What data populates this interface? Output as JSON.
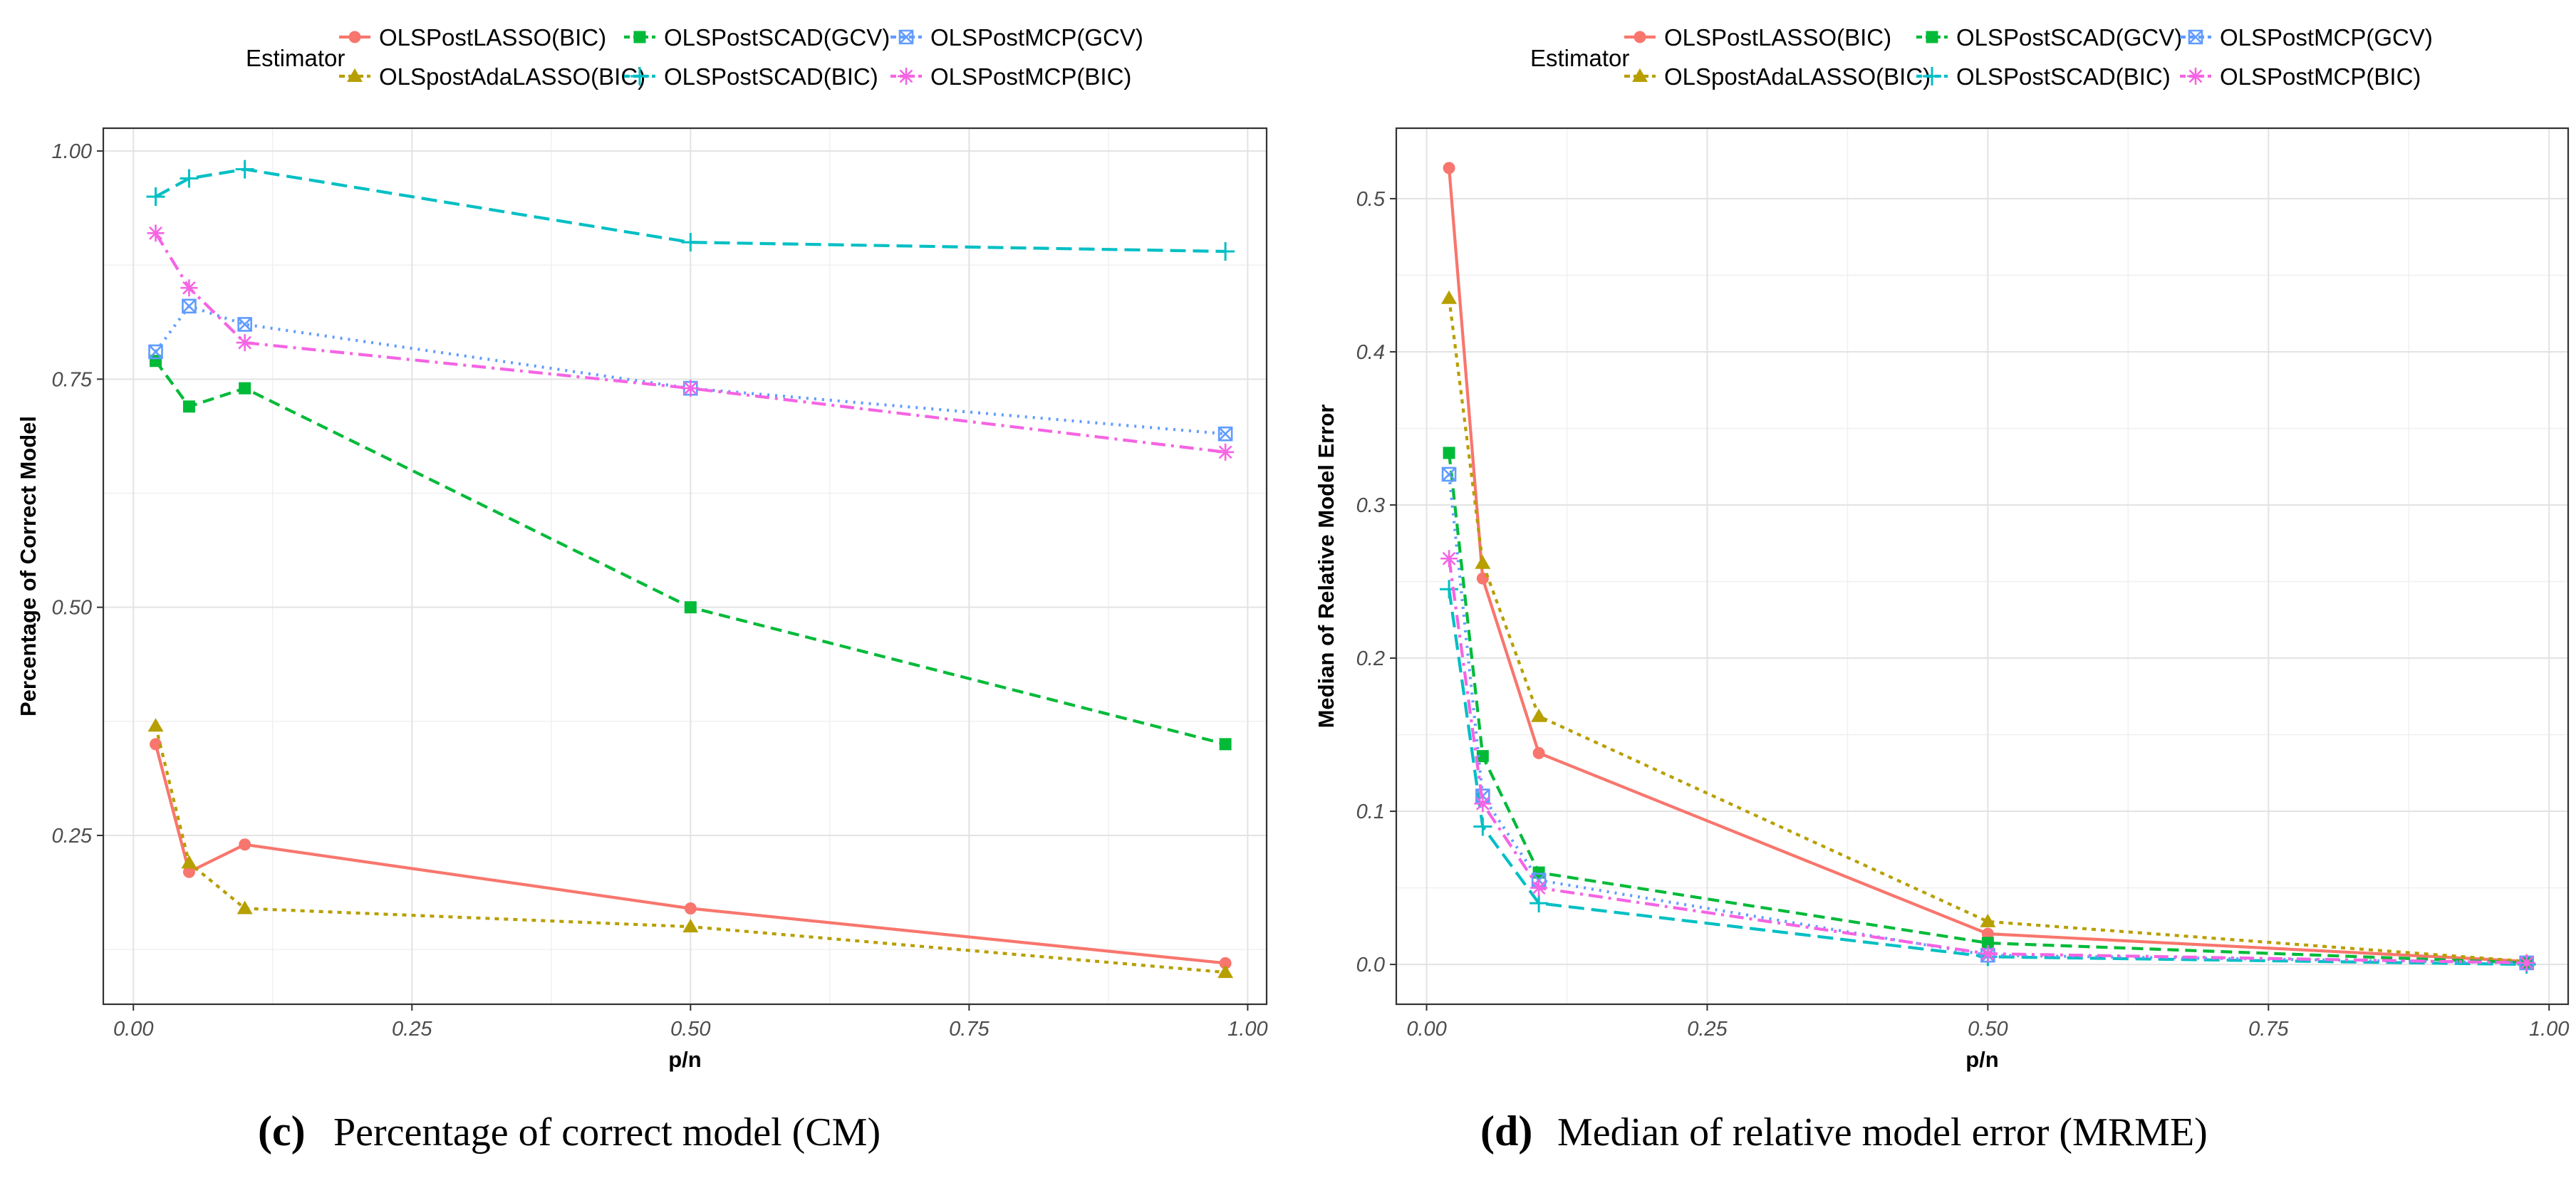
{
  "legend": {
    "title": "Estimator",
    "entries": [
      {
        "name": "OLSPostLASSO(BIC)",
        "color": "#f8766d"
      },
      {
        "name": "OLSpostAdaLASSO(BIC)",
        "color": "#b79f00"
      },
      {
        "name": "OLSPostSCAD(GCV)",
        "color": "#00ba38"
      },
      {
        "name": "OLSPostSCAD(BIC)",
        "color": "#00bfc4"
      },
      {
        "name": "OLSPostMCP(GCV)",
        "color": "#619cff"
      },
      {
        "name": "OLSPostMCP(BIC)",
        "color": "#f564e3"
      }
    ]
  },
  "chart_data": [
    {
      "type": "line",
      "id": "c",
      "caption_letter": "(c)",
      "caption_text": "Percentage of correct model (CM)",
      "xlabel": "p/n",
      "ylabel": "Percentage of Correct Model",
      "xlim": [
        -0.027,
        1.017
      ],
      "ylim": [
        0.065,
        1.025
      ],
      "xticks": [
        0.0,
        0.25,
        0.5,
        0.75,
        1.0
      ],
      "xtick_labels": [
        "0.00",
        "0.25",
        "0.50",
        "0.75",
        "1.00"
      ],
      "yticks": [
        0.25,
        0.5,
        0.75,
        1.0
      ],
      "ytick_labels": [
        "0.25",
        "0.50",
        "0.75",
        "1.00"
      ],
      "x": [
        0.02,
        0.05,
        0.1,
        0.5,
        0.98
      ],
      "series": [
        {
          "name": "OLSPostLASSO(BIC)",
          "values": [
            0.35,
            0.21,
            0.24,
            0.17,
            0.11
          ]
        },
        {
          "name": "OLSpostAdaLASSO(BIC)",
          "values": [
            0.37,
            0.22,
            0.17,
            0.15,
            0.1
          ]
        },
        {
          "name": "OLSPostSCAD(GCV)",
          "values": [
            0.77,
            0.72,
            0.74,
            0.5,
            0.35
          ]
        },
        {
          "name": "OLSPostSCAD(BIC)",
          "values": [
            0.95,
            0.97,
            0.98,
            0.9,
            0.89
          ]
        },
        {
          "name": "OLSPostMCP(GCV)",
          "values": [
            0.78,
            0.83,
            0.81,
            0.74,
            0.69
          ]
        },
        {
          "name": "OLSPostMCP(BIC)",
          "values": [
            0.91,
            0.85,
            0.79,
            0.74,
            0.67
          ]
        }
      ]
    },
    {
      "type": "line",
      "id": "d",
      "caption_letter": "(d)",
      "caption_text": "Median of relative model error (MRME)",
      "xlabel": "p/n",
      "ylabel": "Median of Relative Model Error",
      "xlim": [
        -0.027,
        1.017
      ],
      "ylim": [
        -0.026,
        0.546
      ],
      "xticks": [
        0.0,
        0.25,
        0.5,
        0.75,
        1.0
      ],
      "xtick_labels": [
        "0.00",
        "0.25",
        "0.50",
        "0.75",
        "1.00"
      ],
      "yticks": [
        0.0,
        0.1,
        0.2,
        0.3,
        0.4,
        0.5
      ],
      "ytick_labels": [
        "0.0",
        "0.1",
        "0.2",
        "0.3",
        "0.4",
        "0.5"
      ],
      "x": [
        0.02,
        0.05,
        0.1,
        0.5,
        0.98
      ],
      "series": [
        {
          "name": "OLSPostLASSO(BIC)",
          "values": [
            0.52,
            0.252,
            0.138,
            0.02,
            0.002
          ]
        },
        {
          "name": "OLSpostAdaLASSO(BIC)",
          "values": [
            0.435,
            0.262,
            0.162,
            0.028,
            0.002
          ]
        },
        {
          "name": "OLSPostSCAD(GCV)",
          "values": [
            0.334,
            0.136,
            0.06,
            0.014,
            0.001
          ]
        },
        {
          "name": "OLSPostSCAD(BIC)",
          "values": [
            0.245,
            0.09,
            0.04,
            0.005,
            0.0
          ]
        },
        {
          "name": "OLSPostMCP(GCV)",
          "values": [
            0.32,
            0.11,
            0.055,
            0.006,
            0.001
          ]
        },
        {
          "name": "OLSPostMCP(BIC)",
          "values": [
            0.265,
            0.105,
            0.05,
            0.007,
            0.001
          ]
        }
      ]
    }
  ]
}
